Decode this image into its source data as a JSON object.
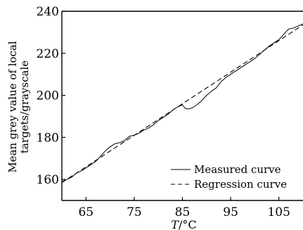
{
  "chart_data": {
    "type": "line",
    "title": "",
    "xlabel_main": "T",
    "xlabel_unit": "/°C",
    "ylabel_line1": "Mean grey value of local",
    "ylabel_line2": "targets/grayscale",
    "xlim": [
      60,
      110
    ],
    "ylim": [
      150,
      240
    ],
    "xticks": [
      65,
      75,
      85,
      95,
      105
    ],
    "yticks": [
      160,
      180,
      200,
      220,
      240
    ],
    "grid": false,
    "legend_position": "lower-right",
    "series": [
      {
        "name": "Measured curve",
        "style": "solid",
        "color": "#000000",
        "x": [
          60,
          61,
          62,
          63,
          64,
          65,
          66,
          67,
          68,
          69,
          70,
          71,
          72,
          73,
          74,
          75,
          76,
          77,
          78,
          79,
          80,
          81,
          82,
          83,
          84,
          85,
          85.5,
          86,
          87,
          88,
          89,
          90,
          91,
          92,
          93,
          94,
          95,
          96,
          97,
          98,
          99,
          100,
          101,
          102,
          103,
          104,
          105,
          106,
          107,
          108,
          109,
          110
        ],
        "y": [
          159,
          160,
          161,
          163,
          164,
          165.5,
          167,
          168.5,
          171,
          173.5,
          175.5,
          177,
          177.5,
          178.5,
          180.5,
          181,
          182,
          183.5,
          184.5,
          186,
          188,
          189.5,
          191,
          193,
          194.5,
          195.5,
          194,
          193.5,
          194,
          195.5,
          197.5,
          200,
          202,
          203.5,
          206.5,
          208.5,
          210,
          211.5,
          213,
          214.5,
          216,
          217.5,
          219.5,
          221.5,
          223.5,
          225,
          226.5,
          229,
          231.5,
          232,
          233,
          234
        ]
      },
      {
        "name": "Regression curve",
        "style": "dashed",
        "color": "#000000",
        "x": [
          60,
          110
        ],
        "y": [
          158.5,
          233.5
        ]
      }
    ]
  }
}
